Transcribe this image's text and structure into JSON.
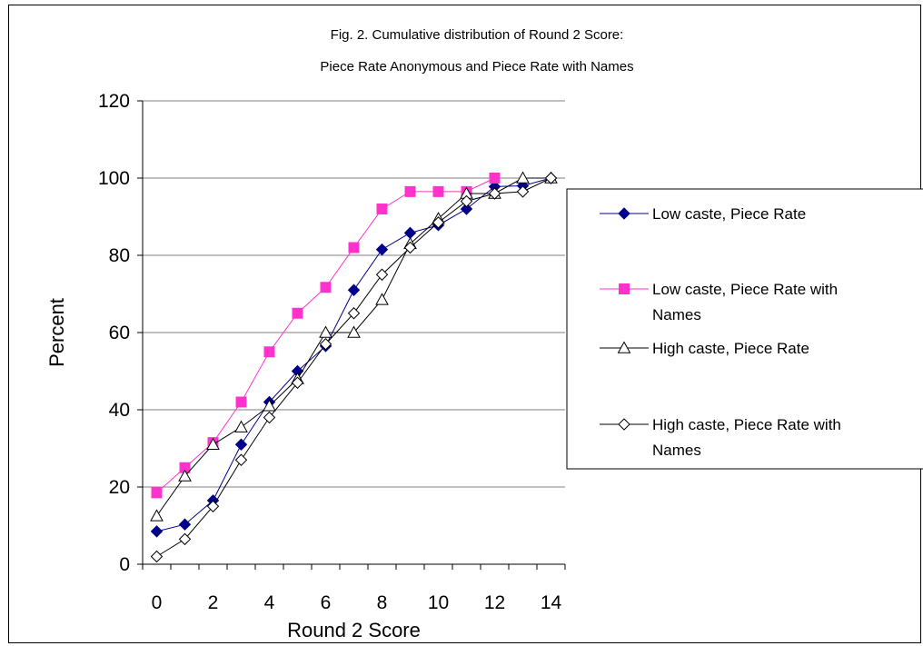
{
  "chart_data": {
    "type": "line",
    "title_line1": "Fig. 2.  Cumulative distribution of Round 2 Score:",
    "title_line2": "Piece Rate Anonymous and Piece Rate with Names",
    "xlabel": "Round 2 Score",
    "ylabel": "Percent",
    "xlim": [
      0,
      14
    ],
    "ylim": [
      0,
      120
    ],
    "x_ticks": [
      "0",
      "2",
      "4",
      "6",
      "8",
      "10",
      "12",
      "14"
    ],
    "y_ticks": [
      "0",
      "20",
      "40",
      "60",
      "80",
      "100",
      "120"
    ],
    "grid": "horizontal",
    "legend_position": "right",
    "x": [
      0,
      1,
      2,
      3,
      4,
      5,
      6,
      7,
      8,
      9,
      10,
      11,
      12,
      13,
      14
    ],
    "series": [
      {
        "name": "Low caste, Piece Rate",
        "legend_lines": [
          "Low caste, Piece Rate"
        ],
        "color": "#00008b",
        "marker": "diamond-filled",
        "values": [
          8.5,
          10.3,
          16.5,
          31,
          42,
          50,
          56.5,
          71,
          81.5,
          85.8,
          87.8,
          92,
          97.8,
          98,
          100
        ]
      },
      {
        "name": "Low caste, Piece Rate with Names",
        "legend_lines": [
          "Low caste, Piece Rate with",
          "Names"
        ],
        "color": "#ff33cc",
        "marker": "square-filled",
        "values": [
          18.5,
          25,
          31.5,
          42,
          55,
          65,
          71.7,
          82,
          92,
          96.5,
          96.5,
          96.5,
          100,
          null,
          null
        ]
      },
      {
        "name": "High caste, Piece Rate",
        "legend_lines": [
          "High caste, Piece Rate"
        ],
        "color": "#000000",
        "marker": "triangle-open",
        "values": [
          12.5,
          22.8,
          31,
          35.5,
          41,
          48,
          60,
          60,
          68.5,
          83,
          89.5,
          96,
          96,
          100,
          100
        ]
      },
      {
        "name": "High caste, Piece Rate with Names",
        "legend_lines": [
          "High caste, Piece Rate with",
          "Names"
        ],
        "color": "#000000",
        "marker": "diamond-open",
        "values": [
          2,
          6.5,
          15,
          27,
          38,
          47,
          57,
          65,
          75,
          82,
          88.5,
          94,
          96,
          96.5,
          100
        ]
      }
    ]
  }
}
